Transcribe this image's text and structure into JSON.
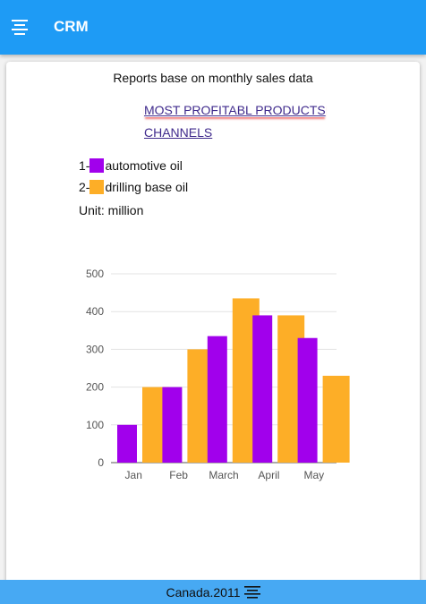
{
  "header": {
    "title": "CRM",
    "menu_icon": "align-center-menu-icon"
  },
  "report": {
    "title": "Reports base on monthly sales data",
    "links": [
      "MOST PROFITABL PRODUCTS",
      "CHANNELS"
    ],
    "legend": [
      {
        "prefix": "1-",
        "label": "automotive oil",
        "color": "#a100ec"
      },
      {
        "prefix": "2-",
        "label": "drilling base oil",
        "color": "#fdae27"
      }
    ],
    "unit": "Unit: million"
  },
  "chart_data": {
    "type": "bar",
    "categories": [
      "Jan",
      "Feb",
      "March",
      "April",
      "May"
    ],
    "series": [
      {
        "name": "automotive oil",
        "color": "#a100ec",
        "values": [
          100,
          200,
          335,
          390,
          330
        ]
      },
      {
        "name": "drilling base oil",
        "color": "#fdae27",
        "values": [
          200,
          300,
          435,
          390,
          230
        ]
      }
    ],
    "yticks": [
      0,
      100,
      200,
      300,
      400,
      500
    ],
    "ylim": [
      0,
      500
    ],
    "grid": true
  },
  "footer": {
    "text": "Canada.2011",
    "icon": "align-center-menu-icon"
  }
}
